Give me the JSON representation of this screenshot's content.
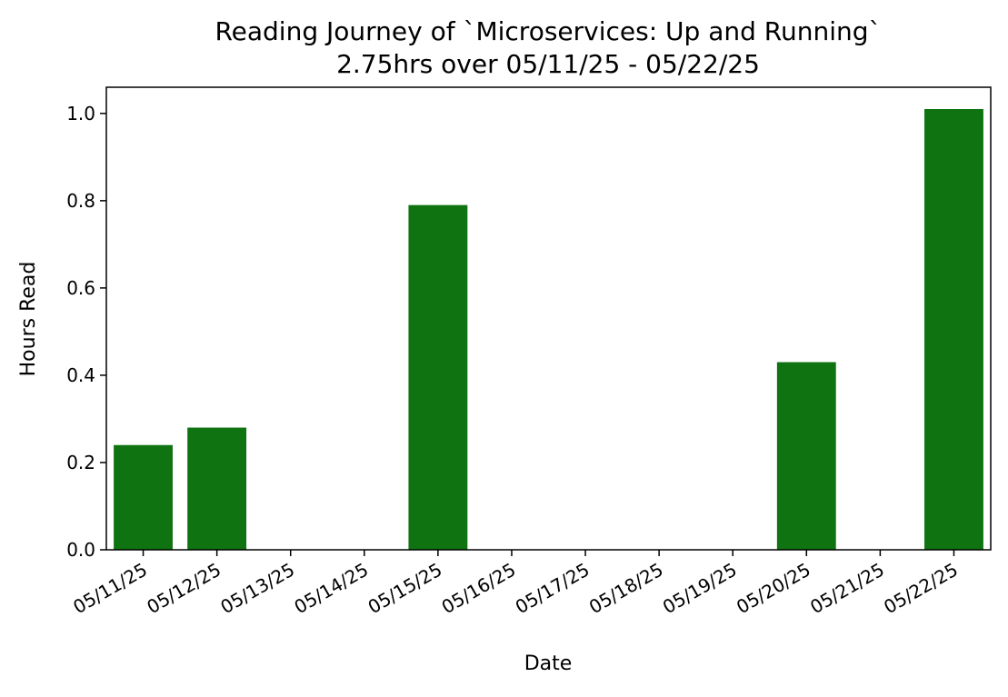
{
  "chart_data": {
    "type": "bar",
    "title": "Reading Journey of `Microservices: Up and Running`",
    "subtitle": "2.75hrs over 05/11/25 - 05/22/25",
    "xlabel": "Date",
    "ylabel": "Hours Read",
    "categories": [
      "05/11/25",
      "05/12/25",
      "05/13/25",
      "05/14/25",
      "05/15/25",
      "05/16/25",
      "05/17/25",
      "05/18/25",
      "05/19/25",
      "05/20/25",
      "05/21/25",
      "05/22/25"
    ],
    "values": [
      0.24,
      0.28,
      0,
      0,
      0.79,
      0,
      0,
      0,
      0,
      0.43,
      0,
      1.01
    ],
    "ylim": [
      0,
      1.06
    ],
    "yticks": [
      "0.0",
      "0.2",
      "0.4",
      "0.6",
      "0.8",
      "1.0"
    ],
    "bar_color": "#0e7310",
    "grid": false
  }
}
